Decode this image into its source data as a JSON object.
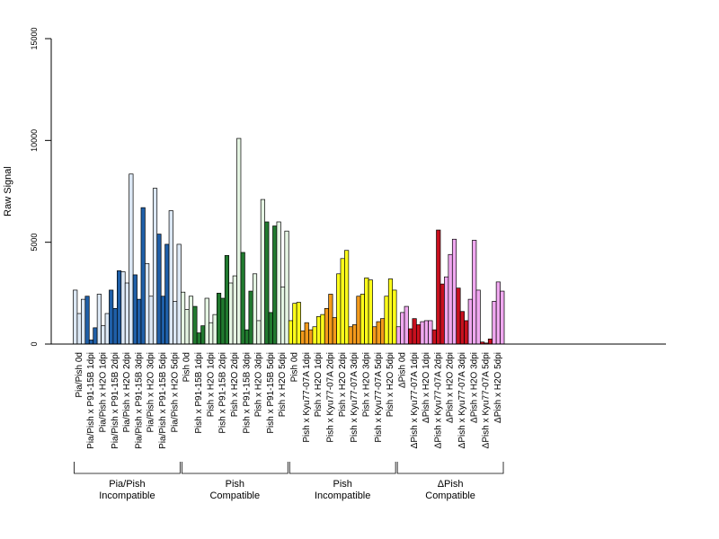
{
  "chart_data": {
    "type": "bar",
    "ylabel": "Raw Signal",
    "ylim": [
      0,
      15000
    ],
    "yticks": [
      0,
      5000,
      10000,
      15000
    ],
    "categories": [
      "Pia/Pish 0d",
      "Pia/Pish x P91-15B 1dpi",
      "Pia/Pish x H2O 1dpi",
      "Pia/Pish x P91-15B 2dpi",
      "Pia/Pish x H2O 2dpi",
      "Pia/Pish x P91-15B 3dpi",
      "Pia/Pish x H2O 3dpi",
      "Pia/Pish x P91-15B 5dpi",
      "Pia/Pish x H2O 5dpi",
      "Pish 0d",
      "Pish x P91-15B 1dpi",
      "Pish x H2O 1dpi",
      "Pish x P91-15B 2dpi",
      "Pish x H2O 2dpi",
      "Pish x P91-15B 3dpi",
      "Pish x H2O 3dpi",
      "Pish x P91-15B 5dpi",
      "Pish x H2O 5dpi",
      "Pish 0d",
      "Pish x Kyu77-07A 1dpi",
      "Pish x H2O 1dpi",
      "Pish x Kyu77-07A 2dpi",
      "Pish x H2O 2dpi",
      "Pish x Kyu77-07A 3dpi",
      "Pish x H2O 3dpi",
      "Pish x Kyu77-07A 5dpi",
      "Pish x H2O 5dpi",
      "ΔPish 0d",
      "ΔPish x Kyu77-07A 1dpi",
      "ΔPish x H2O 1dpi",
      "ΔPish x Kyu77-07A 2dpi",
      "ΔPish x H2O 2dpi",
      "ΔPish x Kyu77-07A 3dpi",
      "ΔPish x H2O 3dpi",
      "ΔPish x Kyu77-07A 5dpi",
      "ΔPish x H2O 5dpi"
    ],
    "values": [
      [
        2650,
        1500,
        2200
      ],
      [
        2350,
        200,
        800
      ],
      [
        2450,
        900,
        1500
      ],
      [
        2650,
        1750,
        3600
      ],
      [
        3550,
        3000,
        8350
      ],
      [
        3400,
        2200,
        6700
      ],
      [
        3950,
        2350,
        7650
      ],
      [
        5400,
        2350,
        4900
      ],
      [
        6550,
        2100,
        4900
      ],
      [
        2550,
        1700,
        2350
      ],
      [
        1850,
        550,
        900
      ],
      [
        2250,
        1050,
        1450
      ],
      [
        2500,
        2250,
        4350
      ],
      [
        3000,
        3350,
        10100
      ],
      [
        4500,
        700,
        2600
      ],
      [
        3450,
        1150,
        7100
      ],
      [
        6000,
        1550,
        5800
      ],
      [
        6000,
        2800,
        5550
      ],
      [
        1150,
        2000,
        2050
      ],
      [
        650,
        1050,
        700
      ],
      [
        850,
        1350,
        1450
      ],
      [
        1750,
        2450,
        1300
      ],
      [
        3450,
        4200,
        4600
      ],
      [
        850,
        950,
        2350
      ],
      [
        2450,
        3250,
        3150
      ],
      [
        850,
        1100,
        1250
      ],
      [
        2350,
        3200,
        2650
      ],
      [
        850,
        1550,
        1850
      ],
      [
        750,
        1250,
        950
      ],
      [
        1100,
        1150,
        1150
      ],
      [
        700,
        5600,
        2950
      ],
      [
        3300,
        4400,
        5150
      ],
      [
        2750,
        1600,
        1150
      ],
      [
        2200,
        5100,
        2650
      ],
      [
        100,
        50,
        250
      ],
      [
        2100,
        3050,
        2600
      ]
    ],
    "groups": [
      {
        "line1": "Pia/Pish",
        "line2": "Incompatible",
        "fill_a": "#dce8f5",
        "fill_b": "#1f5fa8",
        "count": 9
      },
      {
        "line1": "Pish",
        "line2": "Compatible",
        "fill_a": "#e5f5e3",
        "fill_b": "#217a2f",
        "count": 9
      },
      {
        "line1": "Pish",
        "line2": "Incompatible",
        "fill_a": "#ffff1a",
        "fill_b": "#f39a1b",
        "count": 9
      },
      {
        "line1": "ΔPish",
        "line2": "Compatible",
        "fill_a": "#f0a8f0",
        "fill_b": "#c8101e",
        "count": 9
      }
    ],
    "grid": false,
    "legend": "none"
  }
}
